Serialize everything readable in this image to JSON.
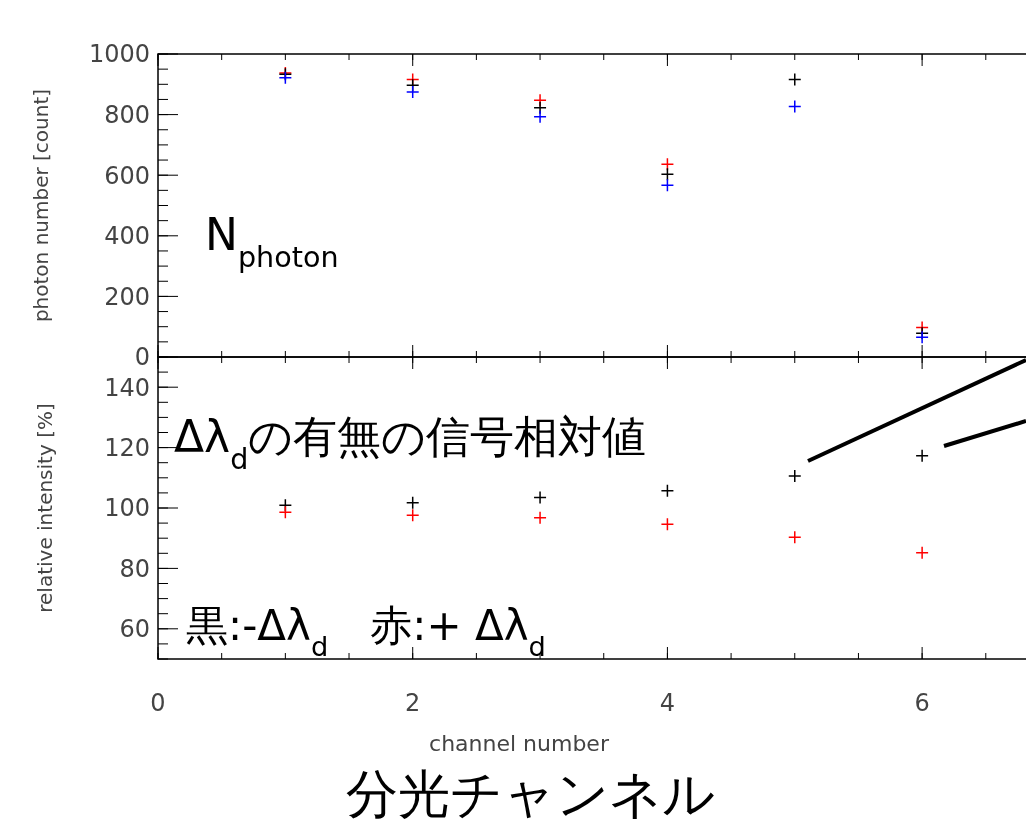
{
  "chart_data": [
    {
      "type": "scatter",
      "x": [
        1,
        2,
        3,
        4,
        5,
        6
      ],
      "ylabel": "photon number [count]",
      "xlim": [
        0,
        6.8
      ],
      "xticks": [
        0,
        2,
        4,
        6
      ],
      "ylim": [
        0,
        1000
      ],
      "yticks": [
        0,
        200,
        400,
        600,
        800,
        1000
      ],
      "tick_labels": "y",
      "marker": "cross",
      "annotations": [
        "N$_{photon}$"
      ],
      "series": [
        {
          "color": "#ff0000",
          "values": [
            937,
            916,
            847,
            636,
            null,
            97
          ]
        },
        {
          "color": "#000000",
          "values": [
            933,
            897,
            823,
            603,
            916,
            78
          ]
        },
        {
          "color": "#0000ff",
          "values": [
            922,
            875,
            793,
            567,
            827,
            65
          ]
        }
      ]
    },
    {
      "type": "scatter",
      "x": [
        1,
        2,
        3,
        4,
        5,
        6
      ],
      "xlabel": "channel number",
      "ylabel": "relative intensity [%]",
      "xlim": [
        0,
        6.8
      ],
      "xticks": [
        0,
        2,
        4,
        6
      ],
      "ylim": [
        50,
        150
      ],
      "yticks": [
        60,
        80,
        100,
        120,
        140
      ],
      "marker": "cross",
      "annotations": [
        "Δλ$_{d}$の有無の信号相対値",
        "黒:-Δλ$_{d}$　赤:+ Δλ$_{d}$",
        "分光チャンネル"
      ],
      "series": [
        {
          "color": "#000000",
          "values": [
            100.9,
            101.7,
            103.5,
            105.7,
            110.6,
            117.3
          ]
        },
        {
          "color": "#ff0000",
          "values": [
            98.6,
            97.6,
            96.8,
            94.6,
            90.3,
            85.2
          ]
        }
      ]
    }
  ]
}
